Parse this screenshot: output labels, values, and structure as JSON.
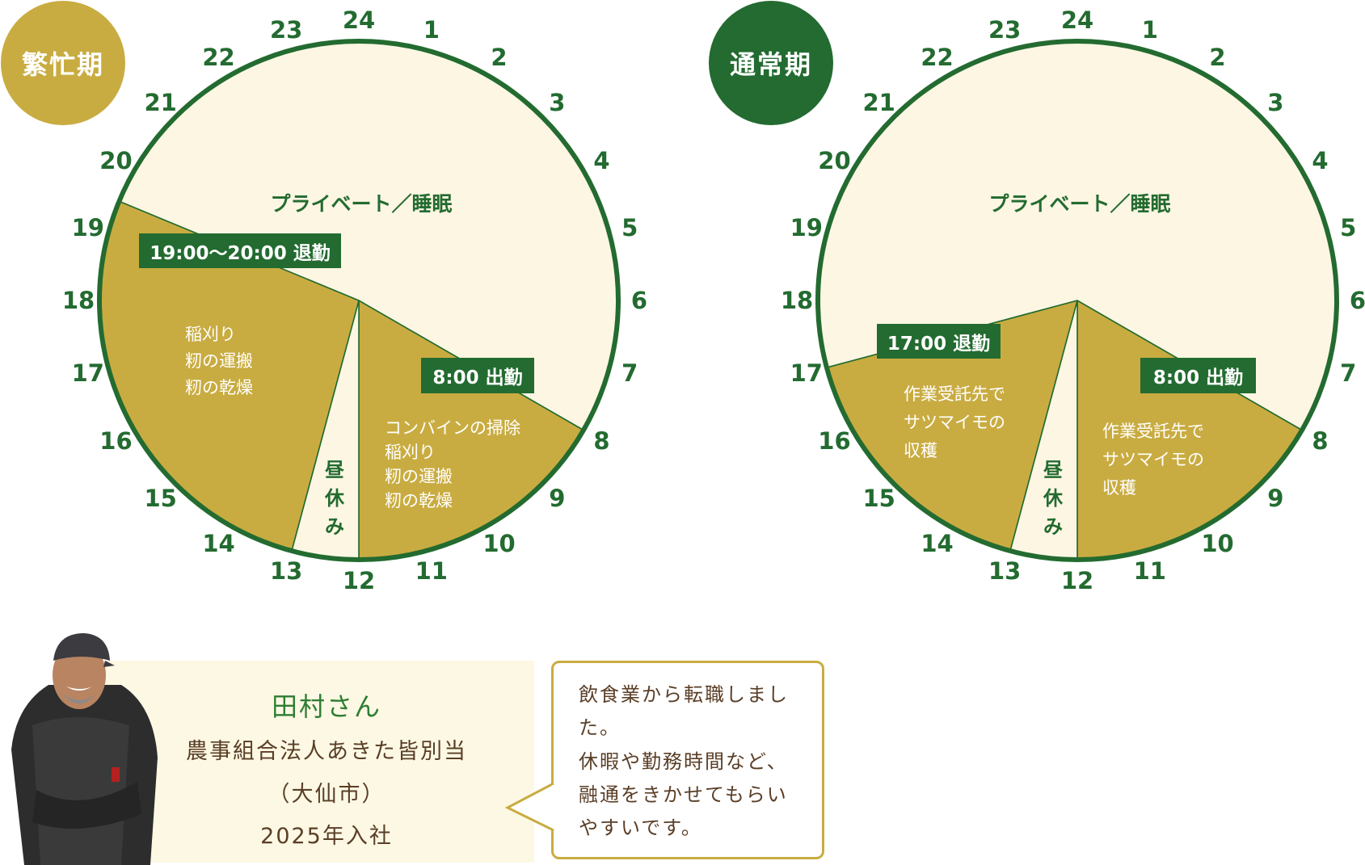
{
  "colors": {
    "green": "#236B30",
    "gold": "#C9AC41",
    "cream": "#FCF6E3",
    "brown": "#5A3E26"
  },
  "clock_numbers": [
    "24",
    "1",
    "2",
    "3",
    "4",
    "5",
    "6",
    "7",
    "8",
    "9",
    "10",
    "11",
    "12",
    "13",
    "14",
    "15",
    "16",
    "17",
    "18",
    "19",
    "20",
    "21",
    "22",
    "23"
  ],
  "charts": [
    {
      "badge": "繁忙期",
      "badge_color": "#C9AC41",
      "segments": [
        {
          "start": 8,
          "end": 12,
          "type": "work"
        },
        {
          "start": 12,
          "end": 13,
          "type": "lunch"
        },
        {
          "start": 13,
          "end": 19.5,
          "type": "work"
        },
        {
          "start": 19.5,
          "end": 32,
          "type": "private"
        }
      ],
      "private_label": "プライベート／睡眠",
      "end_tag": "19:00～20:00 退勤",
      "start_tag": "8:00 出勤",
      "afternoon_lines": [
        "稲刈り",
        "籾の運搬",
        "籾の乾燥"
      ],
      "morning_lines": [
        "コンバインの掃除",
        "稲刈り",
        "籾の運搬",
        "籾の乾燥"
      ],
      "lunch_chars": [
        "昼",
        "休",
        "み"
      ]
    },
    {
      "badge": "通常期",
      "badge_color": "#236B30",
      "segments": [
        {
          "start": 8,
          "end": 12,
          "type": "work"
        },
        {
          "start": 12,
          "end": 13,
          "type": "lunch"
        },
        {
          "start": 13,
          "end": 17,
          "type": "work"
        },
        {
          "start": 17,
          "end": 32,
          "type": "private"
        }
      ],
      "private_label": "プライベート／睡眠",
      "end_tag": "17:00 退勤",
      "start_tag": "8:00 出勤",
      "afternoon_lines": [
        "作業受託先で",
        "サツマイモの",
        "収穫"
      ],
      "morning_lines": [
        "作業受託先で",
        "サツマイモの",
        "収穫"
      ],
      "lunch_chars": [
        "昼",
        "休",
        "み"
      ]
    }
  ],
  "profile": {
    "name": "田村さん",
    "organization": "農事組合法人あきた皆別当",
    "city": "（大仙市）",
    "joined": "2025年入社",
    "quote_lines": [
      "飲食業から転職しまし",
      "た。",
      "休暇や勤務時間など、",
      "融通をきかせてもらい",
      "やすいです。"
    ]
  }
}
